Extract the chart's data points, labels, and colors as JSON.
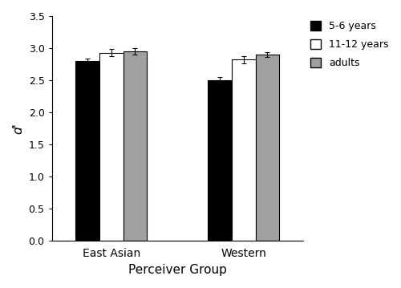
{
  "groups": [
    "East Asian",
    "Western"
  ],
  "age_groups": [
    "5-6 years",
    "11-12 years",
    "adults"
  ],
  "values": {
    "East Asian": [
      2.8,
      2.93,
      2.95
    ],
    "Western": [
      2.5,
      2.82,
      2.9
    ]
  },
  "errors": {
    "East Asian": [
      0.04,
      0.06,
      0.045
    ],
    "Western": [
      0.045,
      0.055,
      0.04
    ]
  },
  "bar_colors": [
    "#000000",
    "#ffffff",
    "#a0a0a0"
  ],
  "bar_edgecolors": [
    "#000000",
    "#000000",
    "#000000"
  ],
  "ylabel": "d'",
  "xlabel": "Perceiver Group",
  "ylim": [
    0.0,
    3.5
  ],
  "yticks": [
    0.0,
    0.5,
    1.0,
    1.5,
    2.0,
    2.5,
    3.0,
    3.5
  ],
  "legend_labels": [
    "5-6 years",
    "11-12 years",
    "adults"
  ],
  "bar_width": 0.18,
  "group_centers": [
    1.0,
    2.0
  ],
  "figsize": [
    5.0,
    3.59
  ],
  "dpi": 100
}
